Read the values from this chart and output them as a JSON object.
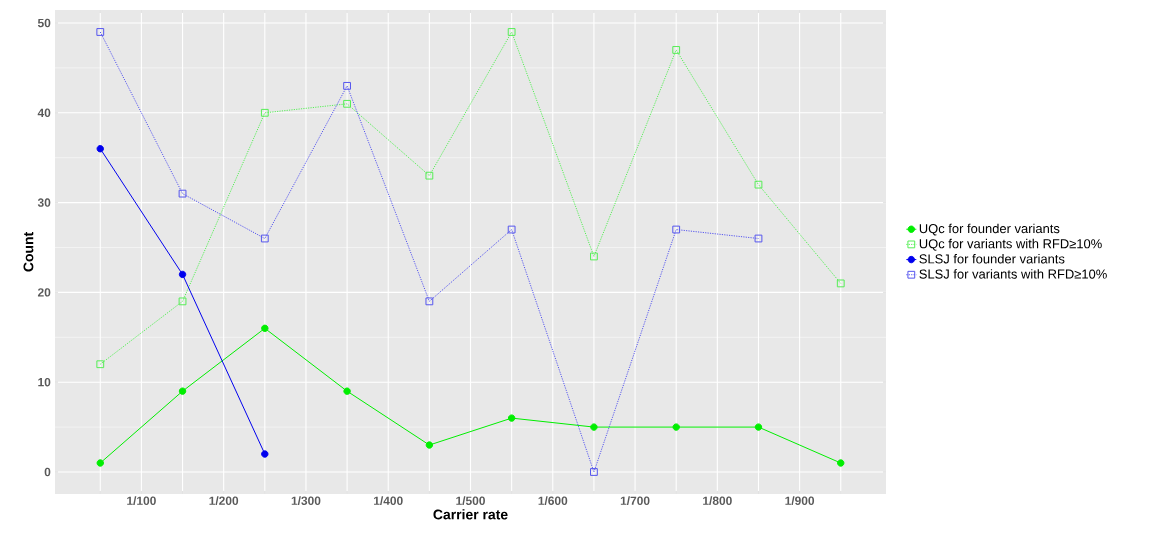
{
  "chart_data": {
    "type": "line",
    "xlabel": "Carrier rate",
    "ylabel": "Count",
    "categories": [
      null,
      null,
      null,
      null,
      null,
      null,
      null,
      null,
      null,
      null
    ],
    "annotations": [
      "1/100",
      "1/200",
      "1/300",
      "1/400",
      "1/500",
      "1/600",
      "1/700",
      "1/800",
      "1/900"
    ],
    "ylim": [
      -2.45,
      51.45
    ],
    "yticks": [
      0,
      10,
      20,
      30,
      40,
      50
    ],
    "grid": true,
    "legend": "right",
    "series": [
      {
        "name": "UQc for founder variants",
        "color": "#00ee00",
        "marker": "circle",
        "line_style": "solid",
        "values": [
          1,
          9,
          16,
          9,
          3,
          6,
          5,
          5,
          5,
          1
        ]
      },
      {
        "name": "UQc for variants with RFD≥10%",
        "color": "#55ee55",
        "marker": "square",
        "line_style": "dotted",
        "values": [
          12,
          19,
          40,
          41,
          33,
          49,
          24,
          47,
          32,
          21
        ]
      },
      {
        "name": "SLSJ for founder variants",
        "color": "#0000ee",
        "marker": "circle",
        "line_style": "solid",
        "values": [
          36,
          22,
          2,
          null,
          null,
          null,
          null,
          null,
          null,
          null
        ]
      },
      {
        "name": "SLSJ for variants with RFD≥10%",
        "color": "#5555ee",
        "marker": "square",
        "line_style": "dotted",
        "values": [
          49,
          31,
          26,
          43,
          19,
          27,
          0,
          27,
          26,
          null
        ]
      }
    ]
  }
}
